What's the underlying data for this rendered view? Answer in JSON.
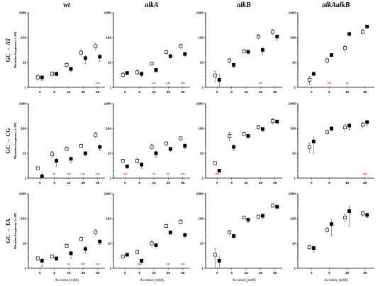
{
  "chart_data": {
    "type": "scatter",
    "scale": "log",
    "ylim": [
      1,
      1000
    ],
    "yticks": [
      "1",
      "10",
      "100",
      "1000"
    ],
    "ylabel": "Mutation frequency [x 10⁸]",
    "xlabel": "Acrolein [mM]",
    "columns": [
      "wt",
      "alkA",
      "alkB",
      "alkAalkB"
    ],
    "rows": [
      "GC → AT",
      "GC → CG",
      "GC → TA"
    ],
    "colors": {
      "open_marker": "#ffffff",
      "filled_marker": "#000000",
      "significance": "#e8393a"
    },
    "panels": [
      {
        "row": 0,
        "col": 0,
        "x": [
          "0",
          "5",
          "10",
          "25",
          "50"
        ],
        "open": [
          2.5,
          3.5,
          8,
          25,
          45
        ],
        "open_err": [
          0.7,
          0.6,
          1.5,
          8,
          15
        ],
        "filled": [
          2.5,
          3.5,
          5.5,
          15,
          17
        ],
        "filled_err": [
          0.6,
          0.6,
          1.2,
          6,
          6
        ],
        "sig": [
          "",
          "",
          "",
          "",
          "***"
        ]
      },
      {
        "row": 0,
        "col": 1,
        "x": [
          "0",
          "5",
          "10",
          "25",
          "50"
        ],
        "open": [
          3.2,
          4,
          9,
          26,
          45
        ],
        "open_err": [
          0.8,
          1,
          1.5,
          5,
          10
        ],
        "filled": [
          3.8,
          3.5,
          5,
          18,
          22
        ],
        "filled_err": [
          0.6,
          0.8,
          1,
          3,
          4
        ],
        "sig": [
          "",
          "",
          "***",
          "***",
          "***"
        ]
      },
      {
        "row": 0,
        "col": 2,
        "x": [
          "0",
          "5",
          "10",
          "25",
          "50"
        ],
        "open": [
          3,
          12,
          28,
          110,
          170
        ],
        "open_err": [
          1.5,
          3,
          5,
          25,
          50
        ],
        "filled": [
          2,
          8,
          27,
          32,
          110
        ],
        "filled_err": [
          1.5,
          2,
          5,
          10,
          30
        ],
        "sig": [
          "",
          "",
          "",
          "***",
          ""
        ]
      },
      {
        "row": 0,
        "col": 3,
        "x": [
          "0",
          "5",
          "10",
          "25"
        ],
        "open": [
          2,
          12,
          38,
          170
        ],
        "open_err": [
          0.8,
          3,
          12,
          40
        ],
        "filled": [
          3.5,
          20,
          140,
          280
        ],
        "filled_err": [
          0.5,
          3,
          20,
          40
        ],
        "sig": [
          "",
          "***",
          "**",
          ""
        ]
      },
      {
        "row": 1,
        "col": 0,
        "x": [
          "0",
          "5",
          "10",
          "25",
          "50"
        ],
        "open": [
          2.5,
          9,
          15,
          20,
          55
        ],
        "open_err": [
          0.3,
          3,
          3,
          3,
          15
        ],
        "filled": [
          1.2,
          5,
          6,
          10,
          18
        ],
        "filled_err": [
          0.6,
          2,
          2,
          2,
          5
        ],
        "sig": [
          "",
          "**",
          "***",
          "***",
          "***"
        ]
      },
      {
        "row": 1,
        "col": 1,
        "x": [
          "0",
          "5",
          "10",
          "25",
          "50"
        ],
        "open": [
          5,
          5,
          18,
          25,
          40
        ],
        "open_err": [
          0.8,
          1.5,
          5,
          4,
          6
        ],
        "filled": [
          3,
          3.5,
          10,
          15,
          20
        ],
        "filled_err": [
          0.5,
          1,
          3,
          3,
          5
        ],
        "sig": [
          "***",
          "",
          "**",
          "**",
          "***"
        ]
      },
      {
        "row": 1,
        "col": 2,
        "x": [
          "0",
          "5",
          "10",
          "25",
          "50"
        ],
        "open": [
          4,
          50,
          60,
          110,
          200
        ],
        "open_err": [
          0.6,
          20,
          8,
          25,
          60
        ],
        "filled": [
          2,
          18,
          50,
          95,
          190
        ],
        "filled_err": [
          0.3,
          5,
          8,
          20,
          30
        ],
        "sig": [
          "***",
          "",
          "",
          "",
          ""
        ]
      },
      {
        "row": 1,
        "col": 3,
        "x": [
          "0",
          "5",
          "10",
          "25"
        ],
        "open": [
          18,
          70,
          110,
          140
        ],
        "open_err": [
          8,
          15,
          40,
          40
        ],
        "filled": [
          30,
          100,
          130,
          180
        ],
        "filled_err": [
          20,
          20,
          40,
          50
        ],
        "sig": [
          "",
          "",
          "",
          "***"
        ]
      },
      {
        "row": 2,
        "col": 0,
        "x": [
          "0",
          "5",
          "10",
          "25",
          "50"
        ],
        "open": [
          2.5,
          3,
          8,
          15,
          28
        ],
        "open_err": [
          0.3,
          0.5,
          1.5,
          3,
          8
        ],
        "filled": [
          2,
          2.5,
          4,
          6,
          12
        ],
        "filled_err": [
          0.8,
          0.5,
          1.5,
          2,
          3
        ],
        "sig": [
          "",
          "",
          "**",
          "***",
          "***"
        ]
      },
      {
        "row": 2,
        "col": 1,
        "x": [
          "0",
          "5",
          "10",
          "25",
          "50"
        ],
        "open": [
          3,
          4.5,
          10,
          50,
          75
        ],
        "open_err": [
          0.4,
          1,
          3,
          8,
          15
        ],
        "filled": [
          3.5,
          2,
          8.5,
          28,
          22
        ],
        "filled_err": [
          0.5,
          0.4,
          2,
          5,
          5
        ],
        "sig": [
          "",
          "***",
          "",
          "***",
          "***"
        ]
      },
      {
        "row": 2,
        "col": 2,
        "x": [
          "0",
          "5",
          "10",
          "25",
          "50"
        ],
        "open": [
          3.5,
          28,
          110,
          120,
          330
        ],
        "open_err": [
          2.5,
          6,
          15,
          20,
          50
        ],
        "filled": [
          2,
          20,
          90,
          130,
          300
        ],
        "filled_err": [
          1.2,
          4,
          20,
          30,
          40
        ],
        "sig": [
          "",
          "",
          "",
          "",
          ""
        ]
      },
      {
        "row": 2,
        "col": 3,
        "x": [
          "0",
          "5",
          "10",
          "25"
        ],
        "open": [
          7,
          35,
          110,
          160
        ],
        "open_err": [
          1.5,
          8,
          40,
          40
        ],
        "filled": [
          6.5,
          60,
          200,
          140
        ],
        "filled_err": [
          2,
          40,
          150,
          30
        ],
        "sig": [
          "",
          "",
          "",
          ""
        ]
      }
    ]
  }
}
